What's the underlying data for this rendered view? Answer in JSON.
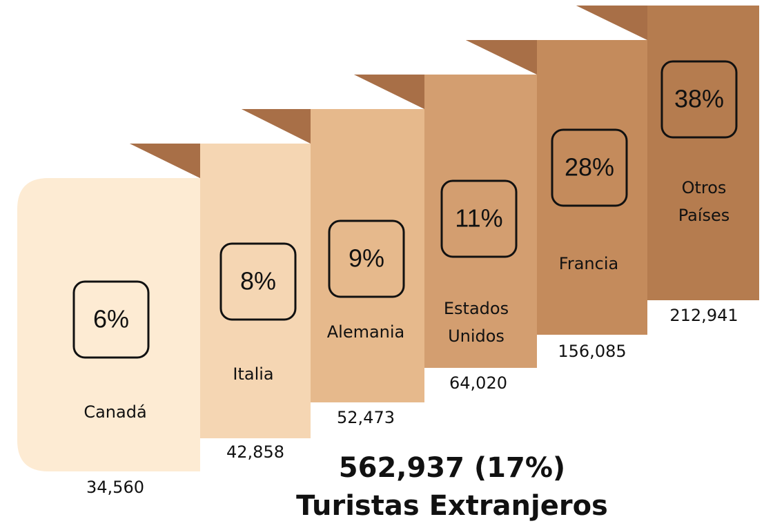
{
  "items": [
    {
      "name": [
        "Canadá"
      ],
      "percent": "6%",
      "count": "34,560"
    },
    {
      "name": [
        "Italia"
      ],
      "percent": "8%",
      "count": "42,858"
    },
    {
      "name": [
        "Alemania"
      ],
      "percent": "9%",
      "count": "52,473"
    },
    {
      "name": [
        "Estados",
        "Unidos"
      ],
      "percent": "11%",
      "count": "64,020"
    },
    {
      "name": [
        "Francia"
      ],
      "percent": "28%",
      "count": "156,085"
    },
    {
      "name": [
        "Otros",
        "Países"
      ],
      "percent": "38%",
      "count": "212,941"
    }
  ],
  "total": "562,937 (17%)",
  "caption": "Turistas Extranjeros"
}
